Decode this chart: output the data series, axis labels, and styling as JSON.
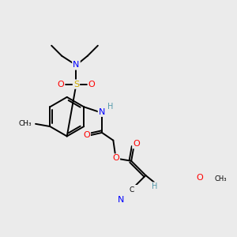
{
  "bg_color": "#ebebeb",
  "atom_colors": {
    "C": "#000000",
    "N": "#0000ff",
    "O": "#ff0000",
    "S": "#ccaa00",
    "H": "#5599aa"
  },
  "bond_color": "#000000",
  "lw": 1.4
}
